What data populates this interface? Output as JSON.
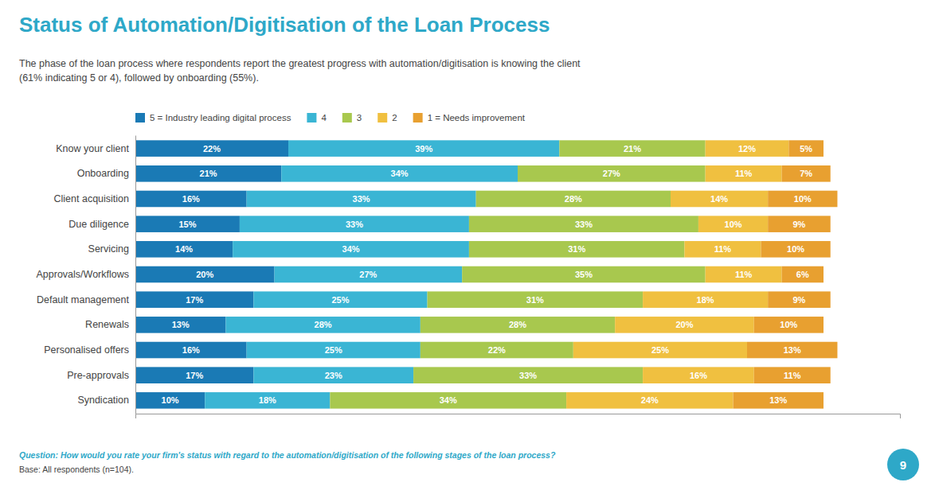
{
  "chart_data": {
    "type": "bar",
    "orientation": "horizontal",
    "stacked": true,
    "title": "Status of Automation/Digitisation of the Loan Process",
    "subtitle": "The phase of the loan process where respondents report the greatest progress with automation/digitisation is knowing the client\n(61% indicating 5 or 4), followed by onboarding (55%).",
    "annotations": [
      "Question: How would you rate your firm's status with regard to the automation/digitisation of the following stages of the loan process?",
      "Base: All respondents (n=104).",
      "9"
    ],
    "categories": [
      "Know your client",
      "Onboarding",
      "Client acquisition",
      "Due diligence",
      "Servicing",
      "Approvals/Workflows",
      "Default management",
      "Renewals",
      "Personalised offers",
      "Pre-approvals",
      "Syndication"
    ],
    "series": [
      {
        "name": "5 = Industry leading digital process",
        "color": "#1a7ab5",
        "values": [
          22,
          21,
          16,
          15,
          14,
          20,
          17,
          13,
          16,
          17,
          10
        ],
        "value_labels": [
          "22%",
          "21%",
          "16%",
          "15%",
          "14%",
          "20%",
          "17%",
          "13%",
          "16%",
          "17%",
          "10%"
        ]
      },
      {
        "name": "4",
        "color": "#3ab5d4",
        "values": [
          39,
          34,
          33,
          33,
          34,
          27,
          25,
          28,
          25,
          23,
          18
        ],
        "value_labels": [
          "39%",
          "34%",
          "33%",
          "33%",
          "34%",
          "27%",
          "25%",
          "28%",
          "25%",
          "23%",
          "18%"
        ]
      },
      {
        "name": "3",
        "color": "#a8c84e",
        "values": [
          21,
          27,
          28,
          33,
          31,
          35,
          31,
          28,
          22,
          33,
          34
        ],
        "value_labels": [
          "21%",
          "27%",
          "28%",
          "33%",
          "31%",
          "35%",
          "31%",
          "28%",
          "22%",
          "33%",
          "34%"
        ]
      },
      {
        "name": "2",
        "color": "#f0c040",
        "values": [
          12,
          11,
          14,
          10,
          11,
          11,
          18,
          20,
          25,
          16,
          24
        ],
        "value_labels": [
          "12%",
          "11%",
          "14%",
          "10%",
          "11%",
          "11%",
          "18%",
          "20%",
          "25%",
          "16%",
          "24%"
        ]
      },
      {
        "name": "1 = Needs improvement",
        "color": "#e8a030",
        "values": [
          5,
          7,
          10,
          9,
          10,
          6,
          9,
          10,
          13,
          11,
          13
        ],
        "value_labels": [
          "5%",
          "7%",
          "10%",
          "9%",
          "10%",
          "6%",
          "9%",
          "10%",
          "13%",
          "11%",
          "13%"
        ]
      }
    ],
    "xlim": [
      0,
      110
    ],
    "data_labels": true,
    "tick_labels": "y",
    "legend": "top",
    "grid": false
  }
}
